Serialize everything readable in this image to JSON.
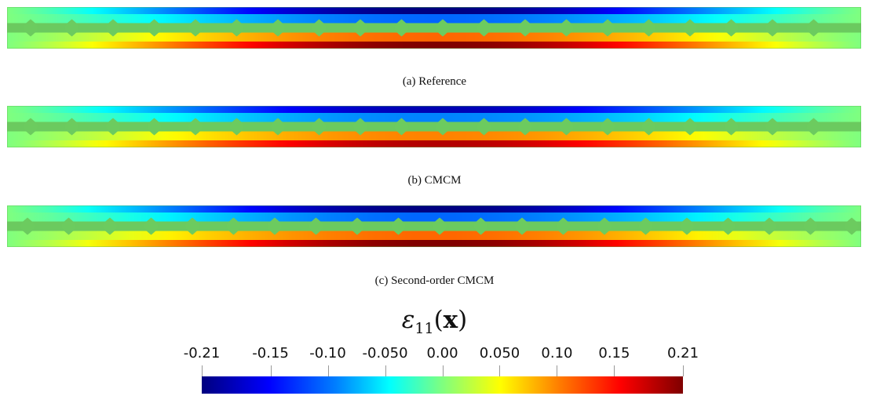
{
  "panels": [
    {
      "id": "a",
      "caption": "(a) Reference"
    },
    {
      "id": "b",
      "caption": "(b) CMCM"
    },
    {
      "id": "c",
      "caption": "(c) Second-order CMCM"
    }
  ],
  "colorbar": {
    "title_symbol": "ε",
    "title_subscript": "11",
    "title_open": "(",
    "title_arg": "x",
    "title_close": ")",
    "ticks": [
      "-0.21",
      "-0.15",
      "-0.10",
      "-0.050",
      "0.00",
      "0.050",
      "0.10",
      "0.15",
      "0.21"
    ],
    "tick_values": [
      -0.21,
      -0.15,
      -0.1,
      -0.05,
      0.0,
      0.05,
      0.1,
      0.15,
      0.21
    ],
    "range": [
      -0.21,
      0.21
    ],
    "colors": [
      "#00007f",
      "#0000ff",
      "#0080ff",
      "#00ffff",
      "#7fff7f",
      "#ffff00",
      "#ff8000",
      "#ff0000",
      "#7f0000"
    ]
  }
}
